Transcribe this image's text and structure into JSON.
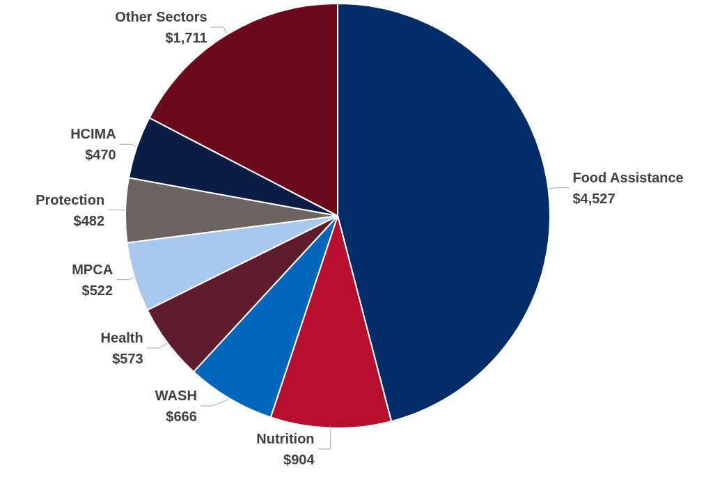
{
  "chart_data": {
    "type": "pie",
    "categories": [
      "Food Assistance",
      "Nutrition",
      "WASH",
      "Health",
      "MPCA",
      "Protection",
      "HCIMA",
      "Other Sectors"
    ],
    "values": [
      4527,
      904,
      666,
      573,
      522,
      482,
      470,
      1711
    ],
    "value_labels": [
      "$4,527",
      "$904",
      "$666",
      "$573",
      "$522",
      "$482",
      "$470",
      "$1,711"
    ],
    "colors": [
      "#002d68",
      "#b80f2f",
      "#0066bb",
      "#5e1c2e",
      "#a8c8ee",
      "#6d6461",
      "#0b1d44",
      "#6b0a1d"
    ]
  }
}
